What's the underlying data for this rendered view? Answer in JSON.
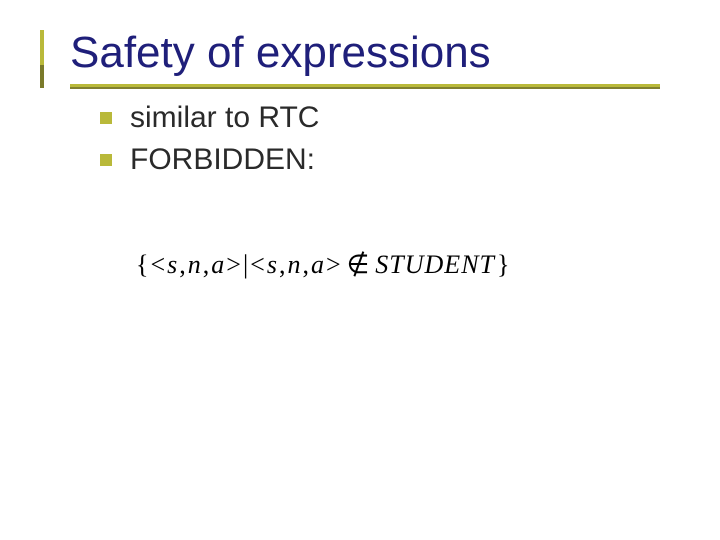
{
  "title": {
    "text": "Safety of expressions",
    "fontsize": 44,
    "color": "#1f1f7a",
    "accent_top_color": "#b9b93a",
    "accent_bottom_color": "#7a7a2a",
    "rule_top_color": "#b9b93a",
    "rule_bottom_color": "#808030"
  },
  "bullets": [
    {
      "text": "similar to RTC"
    },
    {
      "text": "FORBIDDEN:"
    }
  ],
  "bullet_style": {
    "square_color": "#b9b93a",
    "text_color": "#2a2a2a",
    "fontsize": 30
  },
  "formula": {
    "open": "{",
    "lt1": "<",
    "s1": "s",
    "c1": ",",
    "n1": "n",
    "c2": ",",
    "a1": "a",
    "gt1": ">",
    "bar": "|",
    "lt2": "<",
    "s2": "s",
    "c3": ",",
    "n2": "n",
    "c4": ",",
    "a2": "a",
    "gt2": ">",
    "notin": "∉",
    "rel": "STUDENT",
    "close": "}",
    "fontsize": 26,
    "color": "#000000"
  },
  "background_color": "#ffffff"
}
